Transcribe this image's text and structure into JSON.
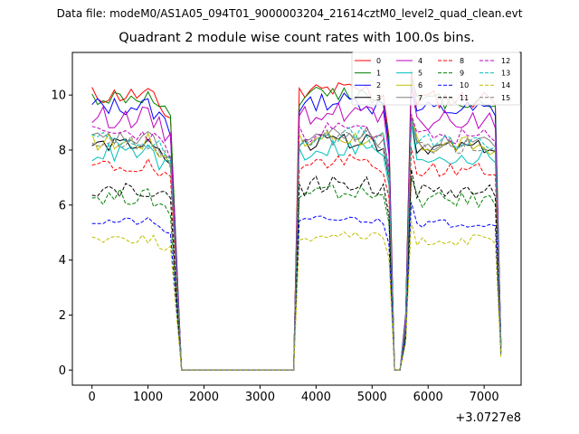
{
  "figure": {
    "suptitle": "Data file: modeM0/AS1A05_094T01_9000003204_21614cztM0_level2_quad_clean.evt"
  },
  "chart_data": {
    "type": "line",
    "title": "Quadrant 2 module wise count rates with 100.0s bins.",
    "xlabel": "",
    "ylabel": "",
    "offset_label": "+3.0727e8",
    "xlim": [
      -350,
      7660
    ],
    "ylim": [
      -0.55,
      11.55
    ],
    "xticks": [
      0,
      1000,
      2000,
      3000,
      4000,
      5000,
      6000,
      7000
    ],
    "yticks": [
      0,
      2,
      4,
      6,
      8,
      10
    ],
    "grid": false,
    "legend": {
      "placement": "top-right",
      "columns": 4,
      "entries": [
        "0",
        "1",
        "2",
        "3",
        "4",
        "5",
        "6",
        "7",
        "8",
        "9",
        "10",
        "11",
        "12",
        "13",
        "14",
        "15"
      ]
    },
    "segment_profile": [
      {
        "x_start": 0,
        "x_end": 1400,
        "level": "on",
        "end_fraction": 0.9
      },
      {
        "x_start": 1400,
        "x_end": 1600,
        "level": "ramp_down"
      },
      {
        "x_start": 1600,
        "x_end": 3600,
        "level": "zero"
      },
      {
        "x_start": 3600,
        "x_end": 3700,
        "level": "ramp_up"
      },
      {
        "x_start": 3700,
        "x_end": 5200,
        "level": "on"
      },
      {
        "x_start": 5200,
        "x_end": 5400,
        "level": "dip"
      },
      {
        "x_start": 5400,
        "x_end": 5600,
        "level": "zero"
      },
      {
        "x_start": 5600,
        "x_end": 7200,
        "level": "on"
      },
      {
        "x_start": 7200,
        "x_end": 7300,
        "level": "ramp_down_end"
      }
    ],
    "series": [
      {
        "name": "0",
        "color": "#ff0000",
        "dashed": false,
        "level": 10.0,
        "amp": 0.35,
        "peak": 10.9
      },
      {
        "name": "1",
        "color": "#008000",
        "dashed": false,
        "level": 9.9,
        "amp": 0.3,
        "peak": 10.6
      },
      {
        "name": "2",
        "color": "#0000ff",
        "dashed": false,
        "level": 9.6,
        "amp": 0.35,
        "peak": 10.4
      },
      {
        "name": "3",
        "color": "#000000",
        "dashed": false,
        "level": 8.2,
        "amp": 0.25,
        "peak": 9.0
      },
      {
        "name": "4",
        "color": "#bf00bf",
        "dashed": false,
        "level": 9.2,
        "amp": 0.4,
        "peak": 10.3
      },
      {
        "name": "5",
        "color": "#00bfbf",
        "dashed": false,
        "level": 7.9,
        "amp": 0.35,
        "peak": 9.0
      },
      {
        "name": "6",
        "color": "#bfbf00",
        "dashed": false,
        "level": 8.3,
        "amp": 0.35,
        "peak": 9.3
      },
      {
        "name": "7",
        "color": "#808080",
        "dashed": false,
        "level": 8.4,
        "amp": 0.3,
        "peak": 9.2
      },
      {
        "name": "8",
        "color": "#ff0000",
        "dashed": true,
        "level": 7.4,
        "amp": 0.3,
        "peak": 8.1
      },
      {
        "name": "9",
        "color": "#008000",
        "dashed": true,
        "level": 6.3,
        "amp": 0.3,
        "peak": 7.0
      },
      {
        "name": "10",
        "color": "#0000ff",
        "dashed": true,
        "level": 5.4,
        "amp": 0.15,
        "peak": 6.1
      },
      {
        "name": "11",
        "color": "#000000",
        "dashed": true,
        "level": 6.6,
        "amp": 0.3,
        "peak": 7.3
      },
      {
        "name": "12",
        "color": "#bf00bf",
        "dashed": true,
        "level": 8.6,
        "amp": 0.3,
        "peak": 9.3
      },
      {
        "name": "13",
        "color": "#00bfbf",
        "dashed": true,
        "level": 8.4,
        "amp": 0.3,
        "peak": 9.1
      },
      {
        "name": "14",
        "color": "#bfbf00",
        "dashed": true,
        "level": 4.8,
        "amp": 0.2,
        "peak": 5.4
      },
      {
        "name": "15",
        "color": "#808080",
        "dashed": true,
        "level": 8.3,
        "amp": 0.3,
        "peak": 9.0
      }
    ]
  }
}
